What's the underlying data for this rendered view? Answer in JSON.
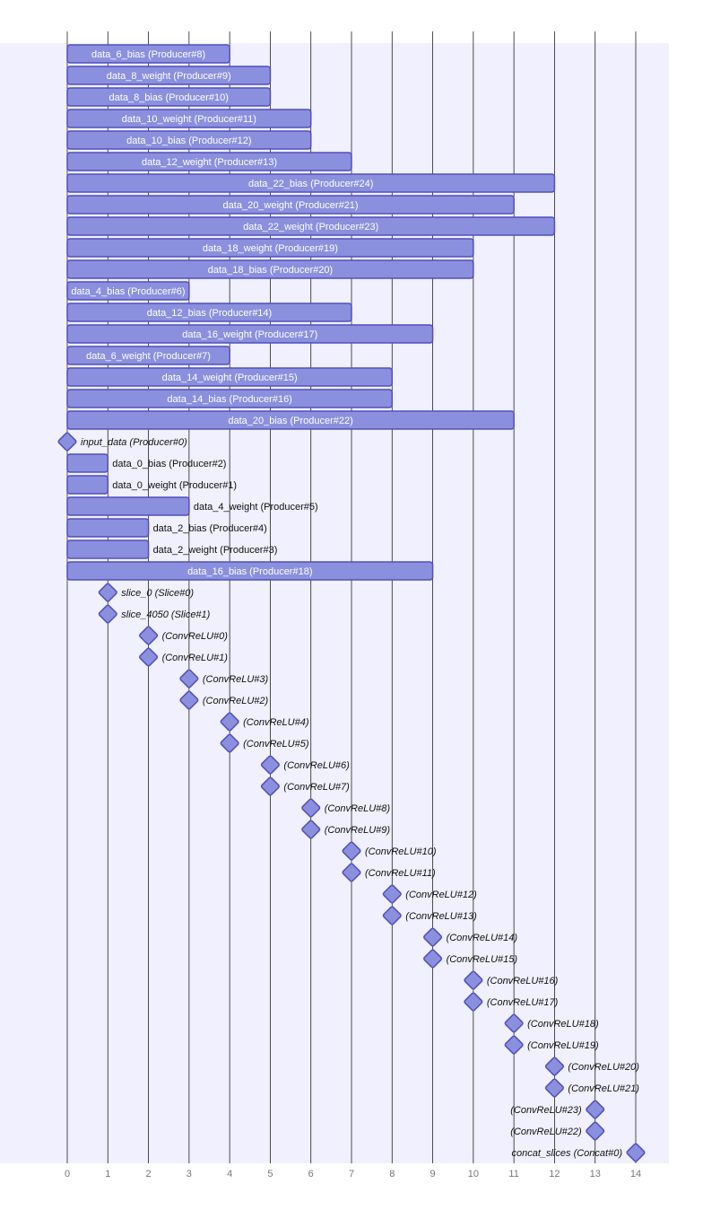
{
  "chart_data": {
    "type": "gantt",
    "xlim": [
      0,
      14
    ],
    "x_ticks": [
      "0",
      "1",
      "2",
      "3",
      "4",
      "5",
      "6",
      "7",
      "8",
      "9",
      "10",
      "11",
      "12",
      "13",
      "14"
    ],
    "grid": true,
    "colors": {
      "band": "#f0f0fe",
      "bar_fill": "#8a90dd",
      "bar_stroke": "#534fbc",
      "grid": "#222222"
    },
    "tasks": [
      {
        "label": "data_6_bias (Producer#8)",
        "start": 0,
        "end": 4
      },
      {
        "label": "data_8_weight (Producer#9)",
        "start": 0,
        "end": 5
      },
      {
        "label": "data_8_bias (Producer#10)",
        "start": 0,
        "end": 5
      },
      {
        "label": "data_10_weight (Producer#11)",
        "start": 0,
        "end": 6
      },
      {
        "label": "data_10_bias (Producer#12)",
        "start": 0,
        "end": 6
      },
      {
        "label": "data_12_weight (Producer#13)",
        "start": 0,
        "end": 7
      },
      {
        "label": "data_22_bias (Producer#24)",
        "start": 0,
        "end": 12
      },
      {
        "label": "data_20_weight (Producer#21)",
        "start": 0,
        "end": 11
      },
      {
        "label": "data_22_weight (Producer#23)",
        "start": 0,
        "end": 12
      },
      {
        "label": "data_18_weight (Producer#19)",
        "start": 0,
        "end": 10
      },
      {
        "label": "data_18_bias (Producer#20)",
        "start": 0,
        "end": 10
      },
      {
        "label": "data_4_bias (Producer#6)",
        "start": 0,
        "end": 3
      },
      {
        "label": "data_12_bias (Producer#14)",
        "start": 0,
        "end": 7
      },
      {
        "label": "data_16_weight (Producer#17)",
        "start": 0,
        "end": 9
      },
      {
        "label": "data_6_weight (Producer#7)",
        "start": 0,
        "end": 4
      },
      {
        "label": "data_14_weight (Producer#15)",
        "start": 0,
        "end": 8
      },
      {
        "label": "data_14_bias (Producer#16)",
        "start": 0,
        "end": 8
      },
      {
        "label": "data_20_bias (Producer#22)",
        "start": 0,
        "end": 11
      },
      {
        "label": "input_data (Producer#0)",
        "start": 0,
        "milestone": true
      },
      {
        "label": "data_0_bias (Producer#2)",
        "start": 0,
        "end": 1
      },
      {
        "label": "data_0_weight (Producer#1)",
        "start": 0,
        "end": 1
      },
      {
        "label": "data_4_weight (Producer#5)",
        "start": 0,
        "end": 3
      },
      {
        "label": "data_2_bias (Producer#4)",
        "start": 0,
        "end": 2
      },
      {
        "label": "data_2_weight (Producer#3)",
        "start": 0,
        "end": 2
      },
      {
        "label": "data_16_bias (Producer#18)",
        "start": 0,
        "end": 9
      },
      {
        "label": "slice_0 (Slice#0)",
        "start": 1,
        "milestone": true
      },
      {
        "label": "slice_4050 (Slice#1)",
        "start": 1,
        "milestone": true
      },
      {
        "label": "(ConvReLU#0)",
        "start": 2,
        "milestone": true
      },
      {
        "label": "(ConvReLU#1)",
        "start": 2,
        "milestone": true
      },
      {
        "label": "(ConvReLU#3)",
        "start": 3,
        "milestone": true
      },
      {
        "label": "(ConvReLU#2)",
        "start": 3,
        "milestone": true
      },
      {
        "label": "(ConvReLU#4)",
        "start": 4,
        "milestone": true
      },
      {
        "label": "(ConvReLU#5)",
        "start": 4,
        "milestone": true
      },
      {
        "label": "(ConvReLU#6)",
        "start": 5,
        "milestone": true
      },
      {
        "label": "(ConvReLU#7)",
        "start": 5,
        "milestone": true
      },
      {
        "label": "(ConvReLU#8)",
        "start": 6,
        "milestone": true
      },
      {
        "label": "(ConvReLU#9)",
        "start": 6,
        "milestone": true
      },
      {
        "label": "(ConvReLU#10)",
        "start": 7,
        "milestone": true
      },
      {
        "label": "(ConvReLU#11)",
        "start": 7,
        "milestone": true
      },
      {
        "label": "(ConvReLU#12)",
        "start": 8,
        "milestone": true
      },
      {
        "label": "(ConvReLU#13)",
        "start": 8,
        "milestone": true
      },
      {
        "label": "(ConvReLU#14)",
        "start": 9,
        "milestone": true
      },
      {
        "label": "(ConvReLU#15)",
        "start": 9,
        "milestone": true
      },
      {
        "label": "(ConvReLU#16)",
        "start": 10,
        "milestone": true
      },
      {
        "label": "(ConvReLU#17)",
        "start": 10,
        "milestone": true
      },
      {
        "label": "(ConvReLU#18)",
        "start": 11,
        "milestone": true
      },
      {
        "label": "(ConvReLU#19)",
        "start": 11,
        "milestone": true
      },
      {
        "label": "(ConvReLU#20)",
        "start": 12,
        "milestone": true
      },
      {
        "label": "(ConvReLU#21)",
        "start": 12,
        "milestone": true
      },
      {
        "label": "(ConvReLU#23)",
        "start": 13,
        "milestone": true
      },
      {
        "label": "(ConvReLU#22)",
        "start": 13,
        "milestone": true
      },
      {
        "label": "concat_slices (Concat#0)",
        "start": 14,
        "milestone": true
      }
    ]
  }
}
